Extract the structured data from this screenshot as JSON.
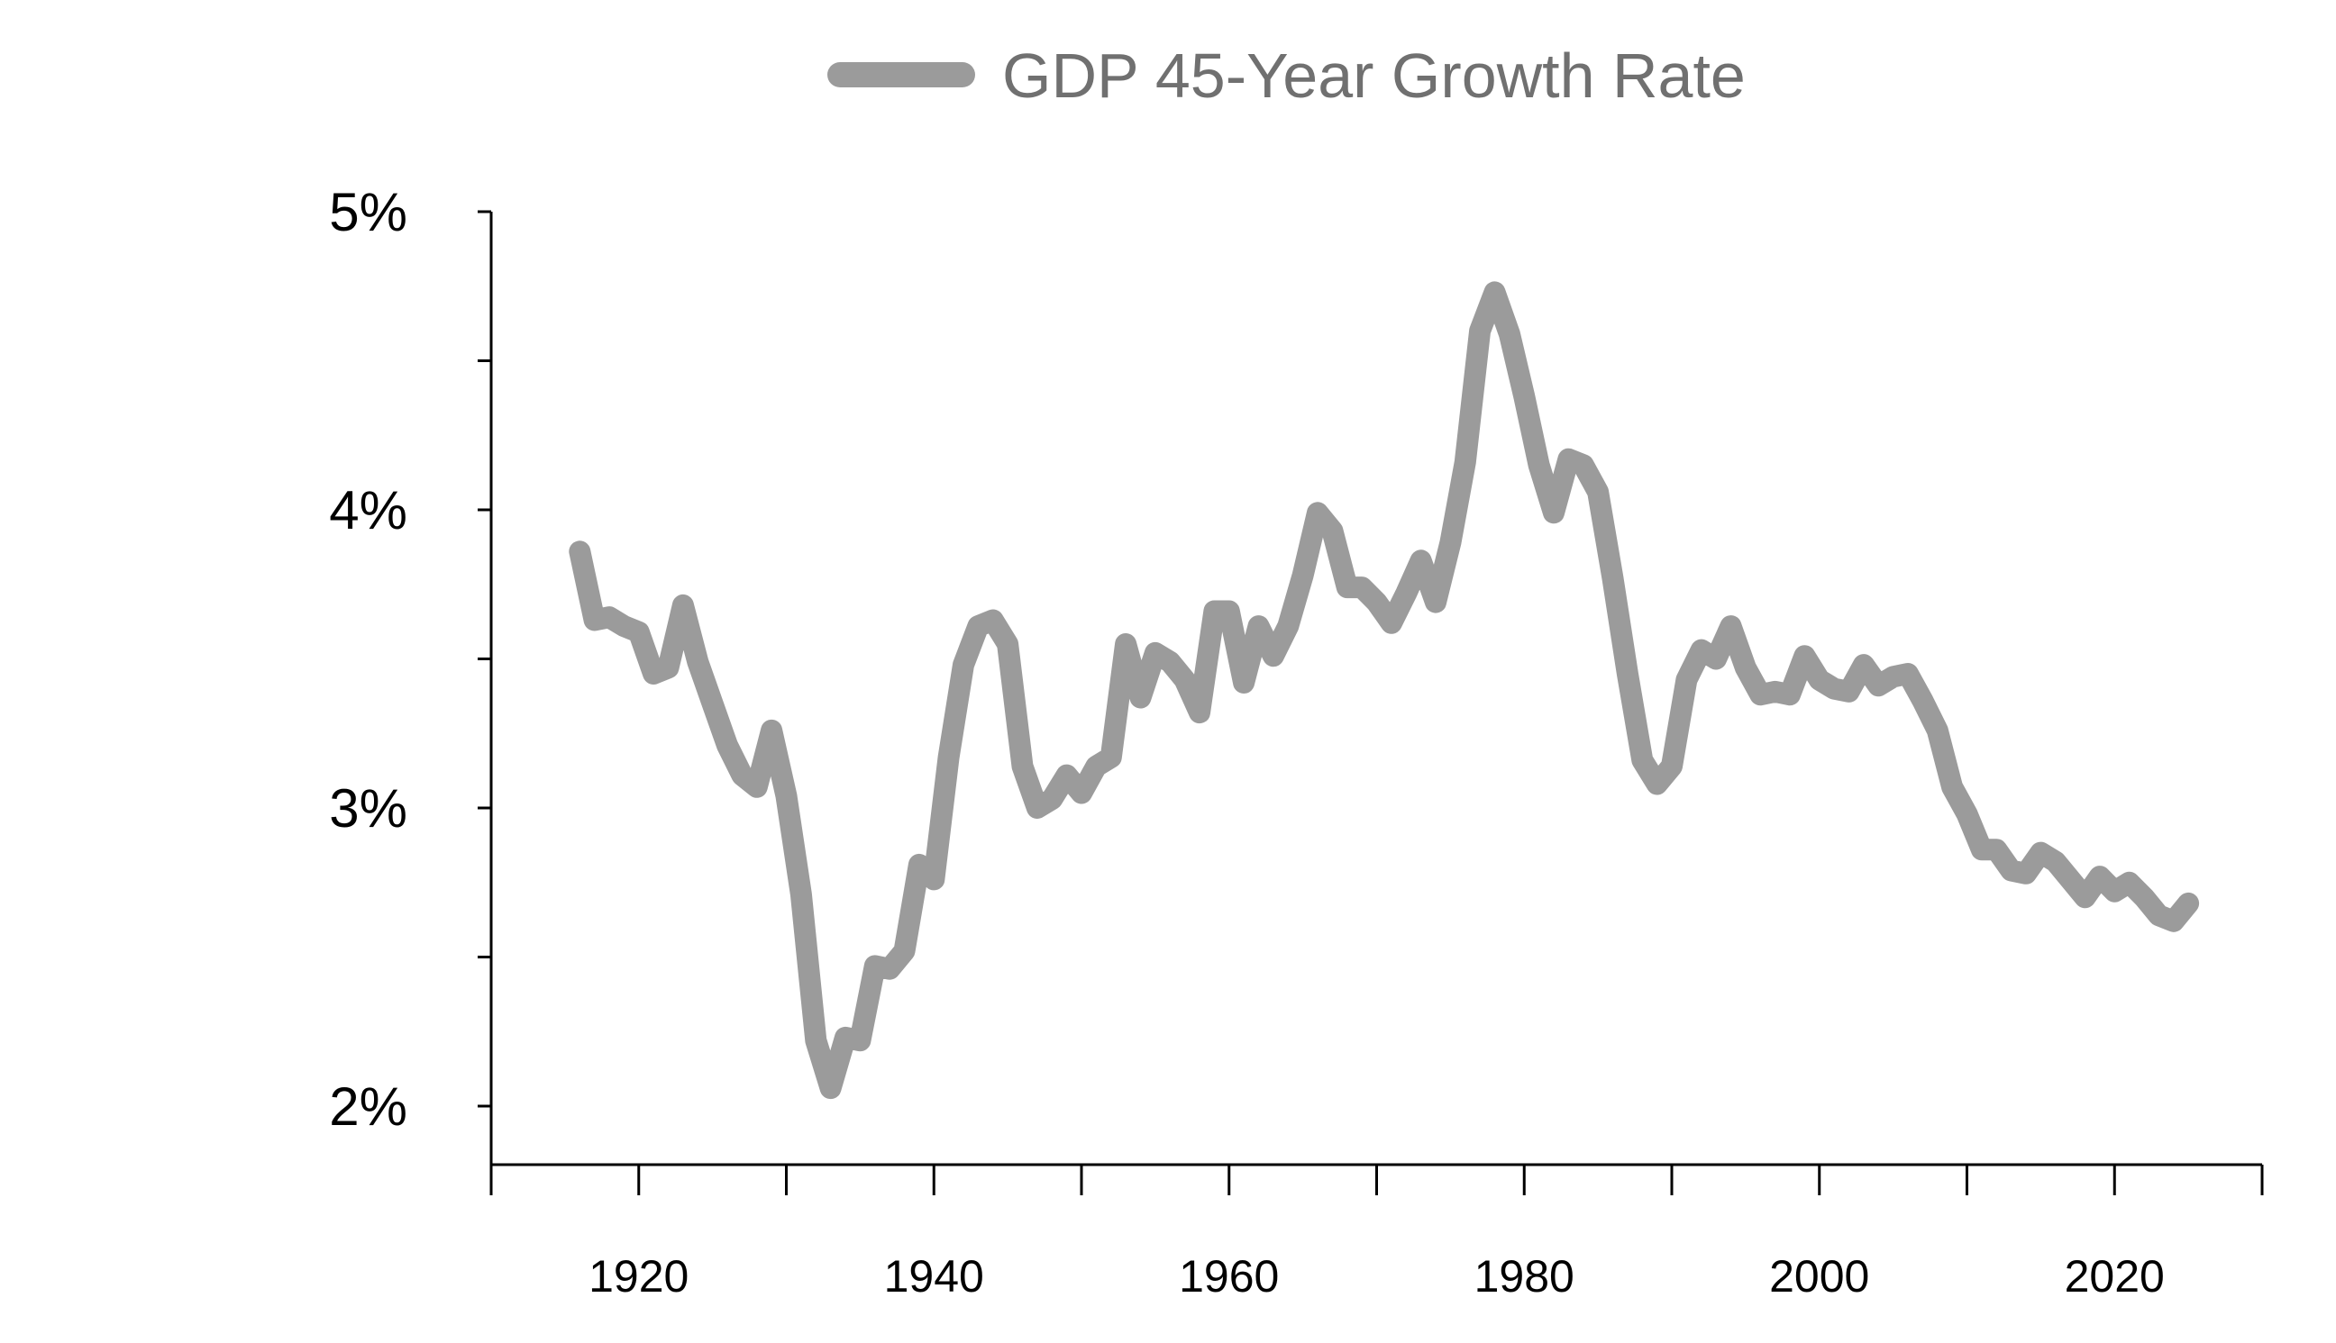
{
  "chart_data": {
    "type": "line",
    "title": "",
    "xlabel": "",
    "ylabel": "",
    "legend_position": "top-center",
    "grid": false,
    "xlim": [
      1910,
      2030
    ],
    "ylim": [
      1.8,
      5.0
    ],
    "x_ticks": [
      1920,
      1940,
      1960,
      1980,
      2000,
      2020
    ],
    "x_tick_labels": [
      "1920",
      "1940",
      "1960",
      "1980",
      "2000",
      "2020"
    ],
    "x_minor_ticks": [
      1910,
      1930,
      1950,
      1970,
      1990,
      2010,
      2030
    ],
    "y_ticks": [
      2,
      3,
      4,
      5
    ],
    "y_tick_labels": [
      "2%",
      "3%",
      "4%",
      "5%"
    ],
    "y_minor_ticks": [
      2.5,
      3.5,
      4.5
    ],
    "series": [
      {
        "name": "GDP 45-Year Growth Rate",
        "color": "#9b9b9b",
        "x": [
          1916,
          1917,
          1918,
          1919,
          1920,
          1921,
          1922,
          1923,
          1924,
          1925,
          1926,
          1927,
          1928,
          1929,
          1930,
          1931,
          1932,
          1933,
          1934,
          1935,
          1936,
          1937,
          1938,
          1939,
          1940,
          1941,
          1942,
          1943,
          1944,
          1945,
          1946,
          1947,
          1948,
          1949,
          1950,
          1951,
          1952,
          1953,
          1954,
          1955,
          1956,
          1957,
          1958,
          1959,
          1960,
          1961,
          1962,
          1963,
          1964,
          1965,
          1966,
          1967,
          1968,
          1969,
          1970,
          1971,
          1972,
          1973,
          1974,
          1975,
          1976,
          1977,
          1978,
          1979,
          1980,
          1981,
          1982,
          1983,
          1984,
          1985,
          1986,
          1987,
          1988,
          1989,
          1990,
          1991,
          1992,
          1993,
          1994,
          1995,
          1996,
          1997,
          1998,
          1999,
          2000,
          2001,
          2002,
          2003,
          2004,
          2005,
          2006,
          2007,
          2008,
          2009,
          2010,
          2011,
          2012,
          2013,
          2014,
          2015,
          2016,
          2017,
          2018,
          2019,
          2020,
          2021,
          2022,
          2023,
          2024,
          2025
        ],
        "values": [
          3.86,
          3.63,
          3.64,
          3.61,
          3.59,
          3.45,
          3.47,
          3.68,
          3.49,
          3.35,
          3.21,
          3.11,
          3.07,
          3.26,
          3.04,
          2.71,
          2.22,
          2.06,
          2.23,
          2.22,
          2.47,
          2.46,
          2.52,
          2.81,
          2.76,
          3.17,
          3.48,
          3.61,
          3.63,
          3.55,
          3.14,
          3.0,
          3.03,
          3.11,
          3.05,
          3.14,
          3.17,
          3.55,
          3.37,
          3.52,
          3.49,
          3.43,
          3.32,
          3.66,
          3.66,
          3.42,
          3.61,
          3.51,
          3.61,
          3.78,
          3.99,
          3.93,
          3.74,
          3.74,
          3.69,
          3.62,
          3.72,
          3.83,
          3.69,
          3.89,
          4.16,
          4.6,
          4.73,
          4.59,
          4.38,
          4.15,
          3.99,
          4.17,
          4.15,
          4.06,
          3.77,
          3.45,
          3.16,
          3.08,
          3.14,
          3.43,
          3.53,
          3.5,
          3.61,
          3.47,
          3.38,
          3.39,
          3.38,
          3.51,
          3.43,
          3.4,
          3.39,
          3.48,
          3.41,
          3.44,
          3.45,
          3.36,
          3.26,
          3.07,
          2.98,
          2.86,
          2.86,
          2.79,
          2.78,
          2.85,
          2.82,
          2.76,
          2.7,
          2.77,
          2.72,
          2.75,
          2.7,
          2.64,
          2.62,
          2.68
        ]
      }
    ]
  }
}
